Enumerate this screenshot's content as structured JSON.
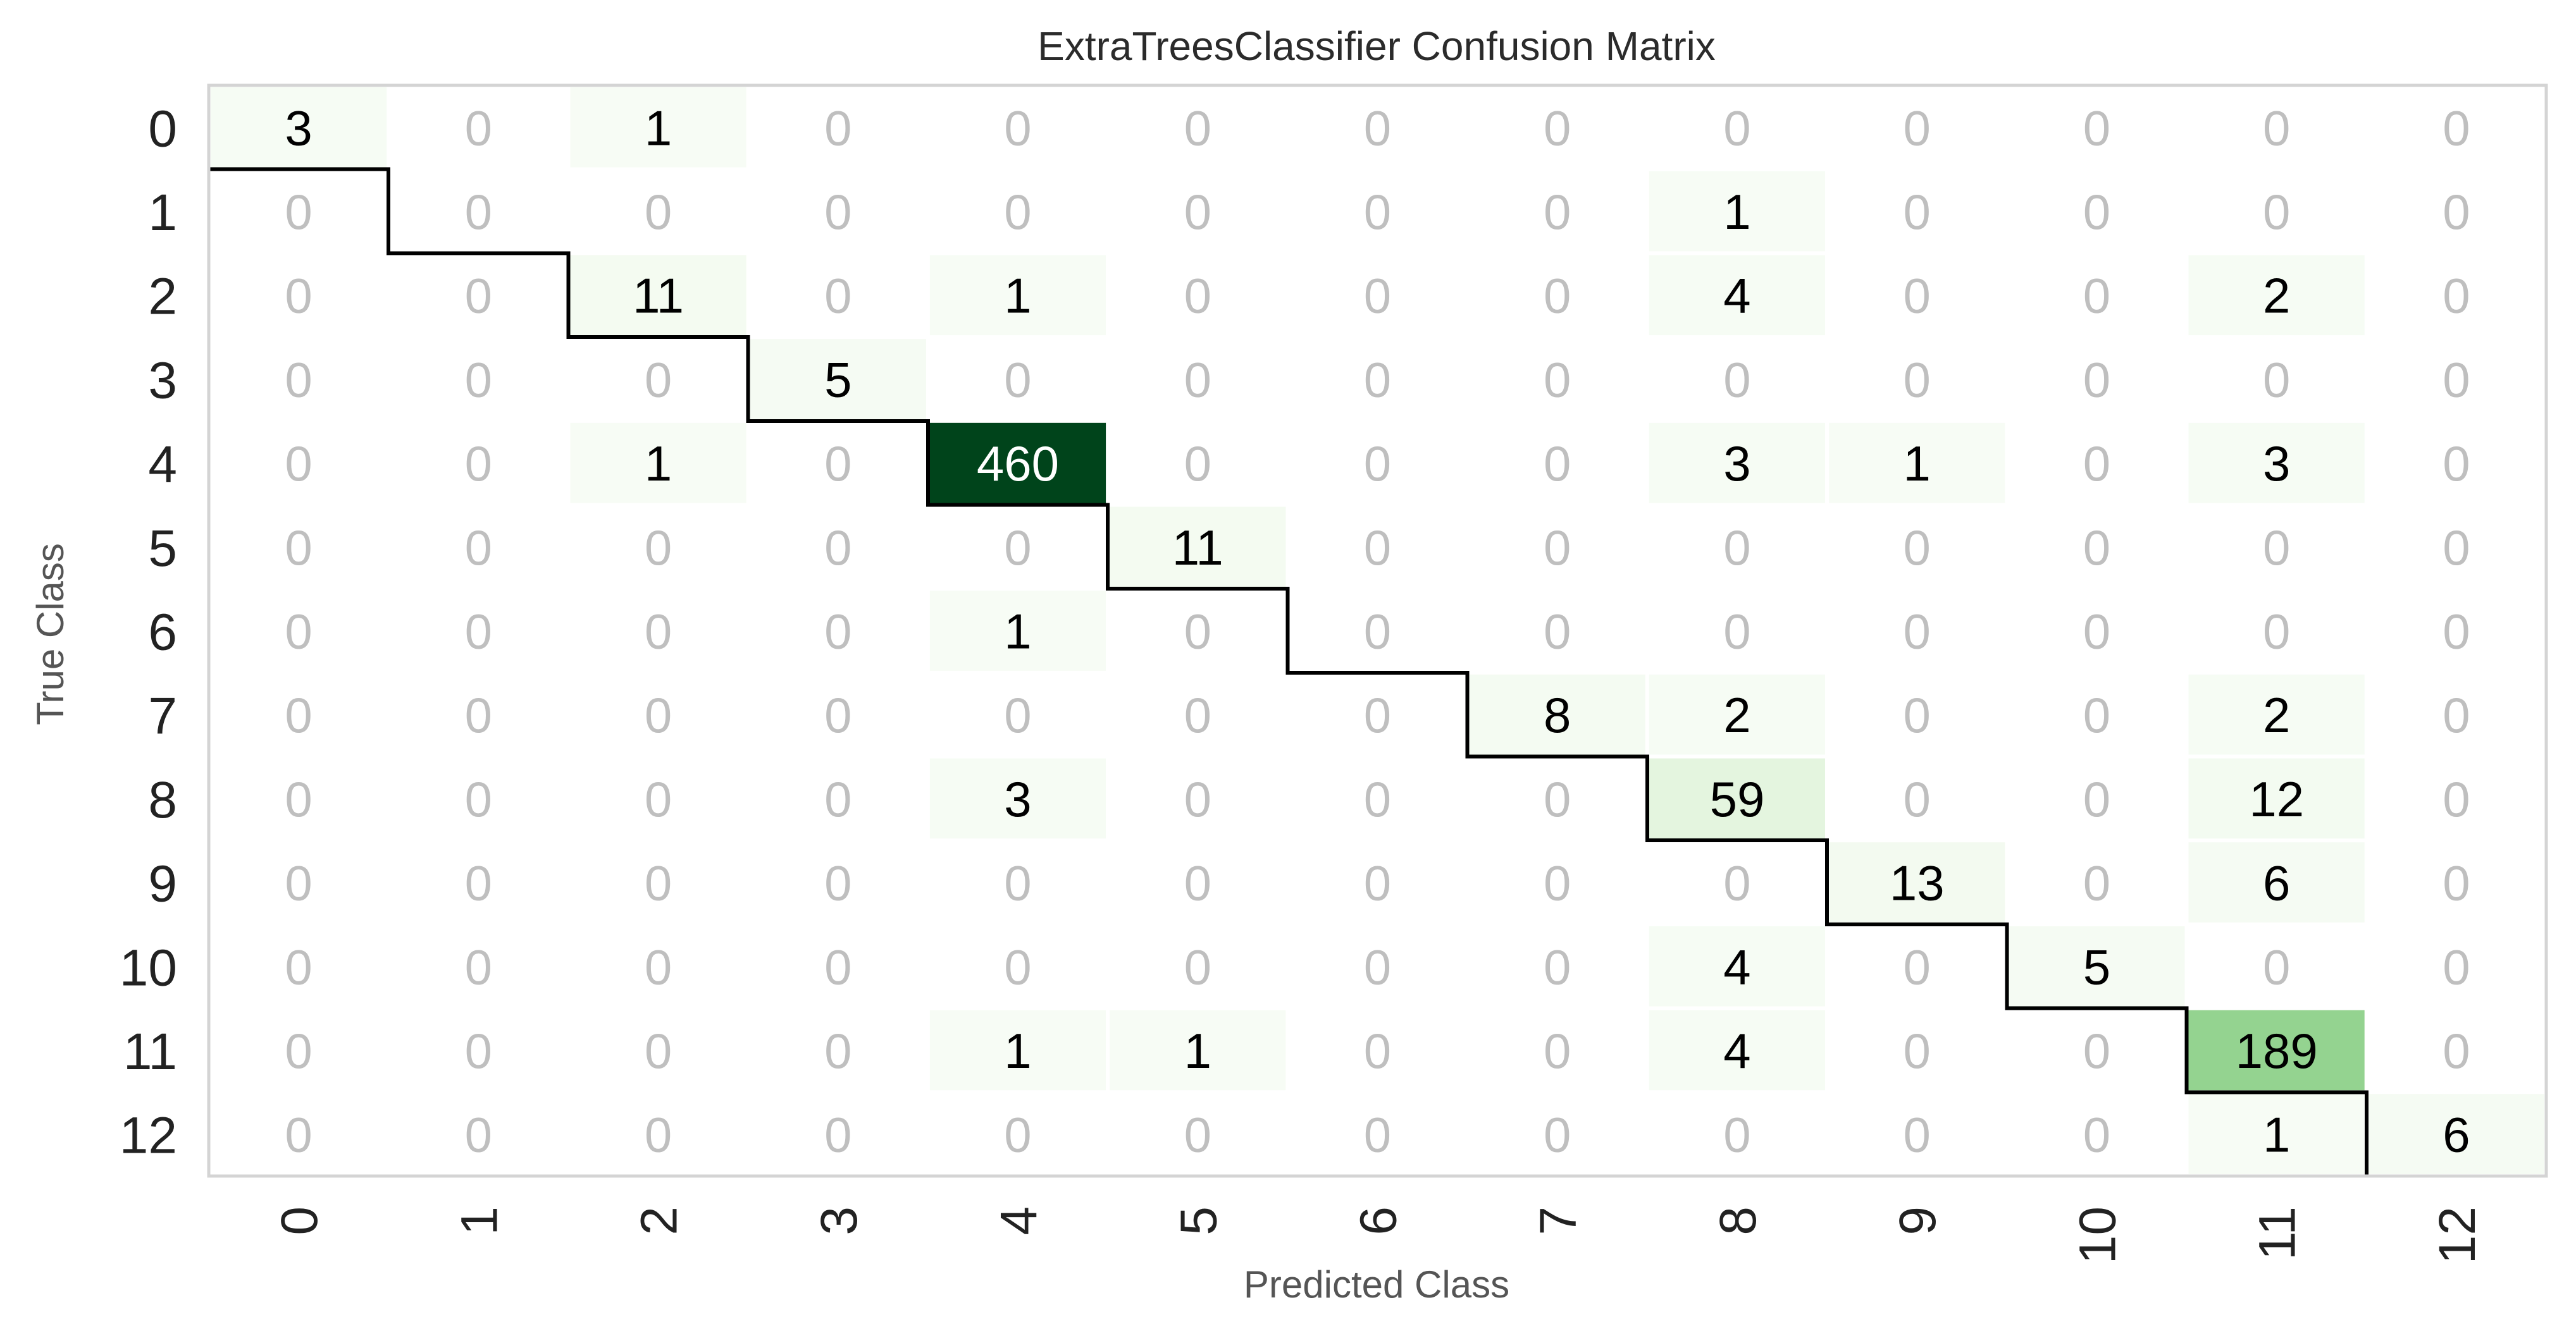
{
  "chart_data": {
    "type": "heatmap",
    "title": "ExtraTreesClassifier Confusion Matrix",
    "xlabel": "Predicted Class",
    "ylabel": "True Class",
    "row_labels": [
      "0",
      "1",
      "2",
      "3",
      "4",
      "5",
      "6",
      "7",
      "8",
      "9",
      "10",
      "11",
      "12"
    ],
    "col_labels": [
      "0",
      "1",
      "2",
      "3",
      "4",
      "5",
      "6",
      "7",
      "8",
      "9",
      "10",
      "11",
      "12"
    ],
    "matrix": [
      [
        3,
        0,
        1,
        0,
        0,
        0,
        0,
        0,
        0,
        0,
        0,
        0,
        0
      ],
      [
        0,
        0,
        0,
        0,
        0,
        0,
        0,
        0,
        1,
        0,
        0,
        0,
        0
      ],
      [
        0,
        0,
        11,
        0,
        1,
        0,
        0,
        0,
        4,
        0,
        0,
        2,
        0
      ],
      [
        0,
        0,
        0,
        5,
        0,
        0,
        0,
        0,
        0,
        0,
        0,
        0,
        0
      ],
      [
        0,
        0,
        1,
        0,
        460,
        0,
        0,
        0,
        3,
        1,
        0,
        3,
        0
      ],
      [
        0,
        0,
        0,
        0,
        0,
        11,
        0,
        0,
        0,
        0,
        0,
        0,
        0
      ],
      [
        0,
        0,
        0,
        0,
        1,
        0,
        0,
        0,
        0,
        0,
        0,
        0,
        0
      ],
      [
        0,
        0,
        0,
        0,
        0,
        0,
        0,
        8,
        2,
        0,
        0,
        2,
        0
      ],
      [
        0,
        0,
        0,
        0,
        3,
        0,
        0,
        0,
        59,
        0,
        0,
        12,
        0
      ],
      [
        0,
        0,
        0,
        0,
        0,
        0,
        0,
        0,
        0,
        13,
        0,
        6,
        0
      ],
      [
        0,
        0,
        0,
        0,
        0,
        0,
        0,
        0,
        4,
        0,
        5,
        0,
        0
      ],
      [
        0,
        0,
        0,
        0,
        1,
        1,
        0,
        0,
        4,
        0,
        0,
        189,
        0
      ],
      [
        0,
        0,
        0,
        0,
        0,
        0,
        0,
        0,
        0,
        0,
        0,
        1,
        6
      ]
    ],
    "colormap": "greens",
    "color_min": "#f7fcf5",
    "color_max": "#00441b",
    "zero_text_color": "#bfbfbf",
    "text_color": "#000000",
    "high_text_color": "#ffffff",
    "frame_color": "#d4d4d4",
    "diagonal_step_line": true,
    "grid": false
  }
}
